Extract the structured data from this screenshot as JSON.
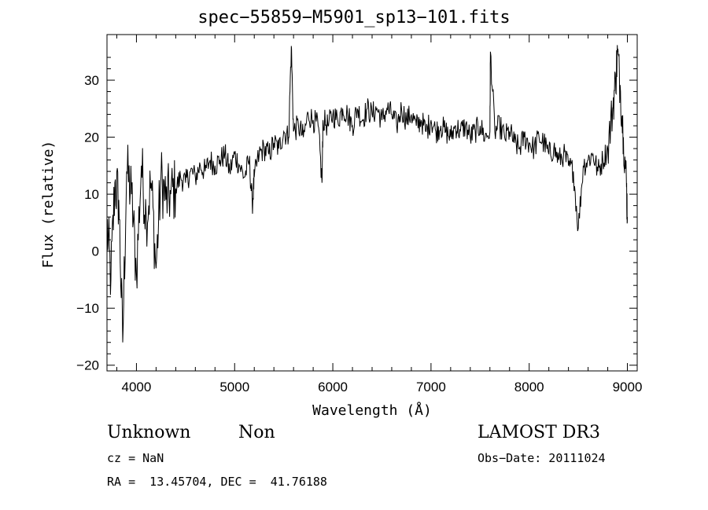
{
  "chart_data": {
    "type": "line",
    "title": "spec−55859−M5901_sp13−101.fits",
    "xlabel": "Wavelength (Å)",
    "ylabel": "Flux (relative)",
    "xlim": [
      3700,
      9100
    ],
    "ylim": [
      -21,
      38
    ],
    "x_ticks": [
      4000,
      5000,
      6000,
      7000,
      8000,
      9000
    ],
    "x_tick_labels": [
      "4000",
      "5000",
      "6000",
      "7000",
      "8000",
      "9000"
    ],
    "y_ticks": [
      -20,
      -10,
      0,
      10,
      20,
      30
    ],
    "y_tick_labels": [
      "−20",
      "−10",
      "0",
      "10",
      "20",
      "30"
    ],
    "line_color": "#000000",
    "series": [
      {
        "x": [
          3700,
          3740,
          3780,
          3820,
          3860,
          3900,
          3950,
          4000,
          4050,
          4100,
          4150,
          4200,
          4250,
          4300,
          4350,
          4400,
          4450,
          4500,
          4550,
          4600,
          4650,
          4700,
          4750,
          4800,
          4850,
          4900,
          4950,
          5000,
          5050,
          5100,
          5150,
          5180,
          5200,
          5250,
          5300,
          5350,
          5400,
          5450,
          5500,
          5550,
          5577,
          5600,
          5650,
          5700,
          5750,
          5800,
          5850,
          5890,
          5900,
          5950,
          6000,
          6050,
          6100,
          6150,
          6200,
          6250,
          6300,
          6350,
          6400,
          6450,
          6500,
          6550,
          6600,
          6650,
          6700,
          6750,
          6800,
          6850,
          6900,
          6950,
          7000,
          7050,
          7100,
          7150,
          7200,
          7250,
          7300,
          7350,
          7400,
          7450,
          7500,
          7550,
          7600,
          7605,
          7650,
          7700,
          7750,
          7800,
          7850,
          7900,
          7950,
          8000,
          8050,
          8100,
          8150,
          8200,
          8250,
          8300,
          8350,
          8400,
          8450,
          8500,
          8550,
          8600,
          8650,
          8700,
          8750,
          8800,
          8850,
          8880,
          8900,
          8930,
          8960,
          8990,
          9000
        ],
        "y": [
          5,
          -5,
          12,
          9,
          -16,
          14,
          10,
          -4,
          15,
          6,
          12,
          -3,
          13,
          9,
          10,
          11,
          13,
          12,
          14,
          13,
          15,
          14,
          16,
          15,
          16,
          17,
          14,
          17,
          15,
          13,
          16,
          8,
          13,
          17,
          18,
          17,
          19,
          18,
          21,
          20,
          36,
          21,
          22,
          20,
          24,
          23,
          22,
          12,
          23,
          22,
          24,
          23,
          25,
          24,
          22,
          25,
          23,
          25,
          24,
          25,
          23,
          25,
          24,
          22,
          25,
          23,
          24,
          22,
          23,
          21,
          23,
          21,
          22,
          21,
          20,
          22,
          21,
          22,
          20,
          21,
          22,
          20,
          21,
          35,
          21,
          22,
          20,
          21,
          19,
          18,
          20,
          19,
          18,
          20,
          19,
          17,
          18,
          16,
          17,
          15,
          14,
          4,
          15,
          16,
          17,
          14,
          16,
          18,
          25,
          30,
          35,
          28,
          20,
          12,
          6
        ]
      }
    ]
  },
  "footer": {
    "object_class": "Unknown",
    "subclass": "Non",
    "survey": "LAMOST DR3",
    "cz": "cz = NaN",
    "obs_date": "Obs−Date: 20111024",
    "coords": "RA =  13.45704, DEC =  41.76188"
  }
}
